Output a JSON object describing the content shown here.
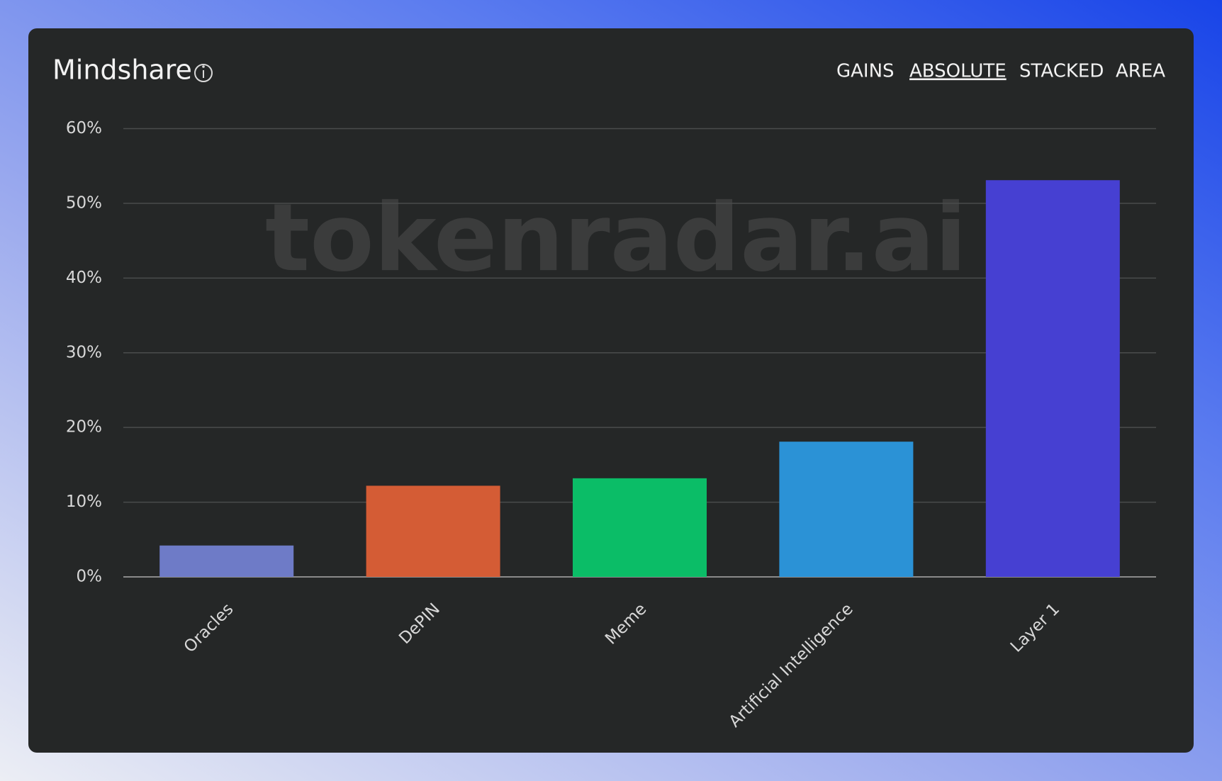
{
  "header": {
    "title": "Mindshare",
    "tabs": [
      "GAINS",
      "ABSOLUTE",
      "STACKED",
      "AREA"
    ],
    "active_tab": 1
  },
  "watermark": "tokenradar.ai",
  "chart_data": {
    "type": "bar",
    "categories": [
      "Oracles",
      "DePIN",
      "Meme",
      "Artificial Intelligence",
      "Layer 1"
    ],
    "values": [
      4.2,
      12.2,
      13.2,
      18.1,
      53.1
    ],
    "colors": [
      "#6e7bc7",
      "#d45c35",
      "#0bbd67",
      "#2b92d6",
      "#4640d2"
    ],
    "ylim": [
      0,
      60
    ],
    "yticks": [
      {
        "value": 0,
        "label": "0%"
      },
      {
        "value": 10,
        "label": "10%"
      },
      {
        "value": 20,
        "label": "20%"
      },
      {
        "value": 30,
        "label": "30%"
      },
      {
        "value": 40,
        "label": "40%"
      },
      {
        "value": 50,
        "label": "50%"
      },
      {
        "value": 60,
        "label": "60%"
      }
    ],
    "grid": true
  }
}
